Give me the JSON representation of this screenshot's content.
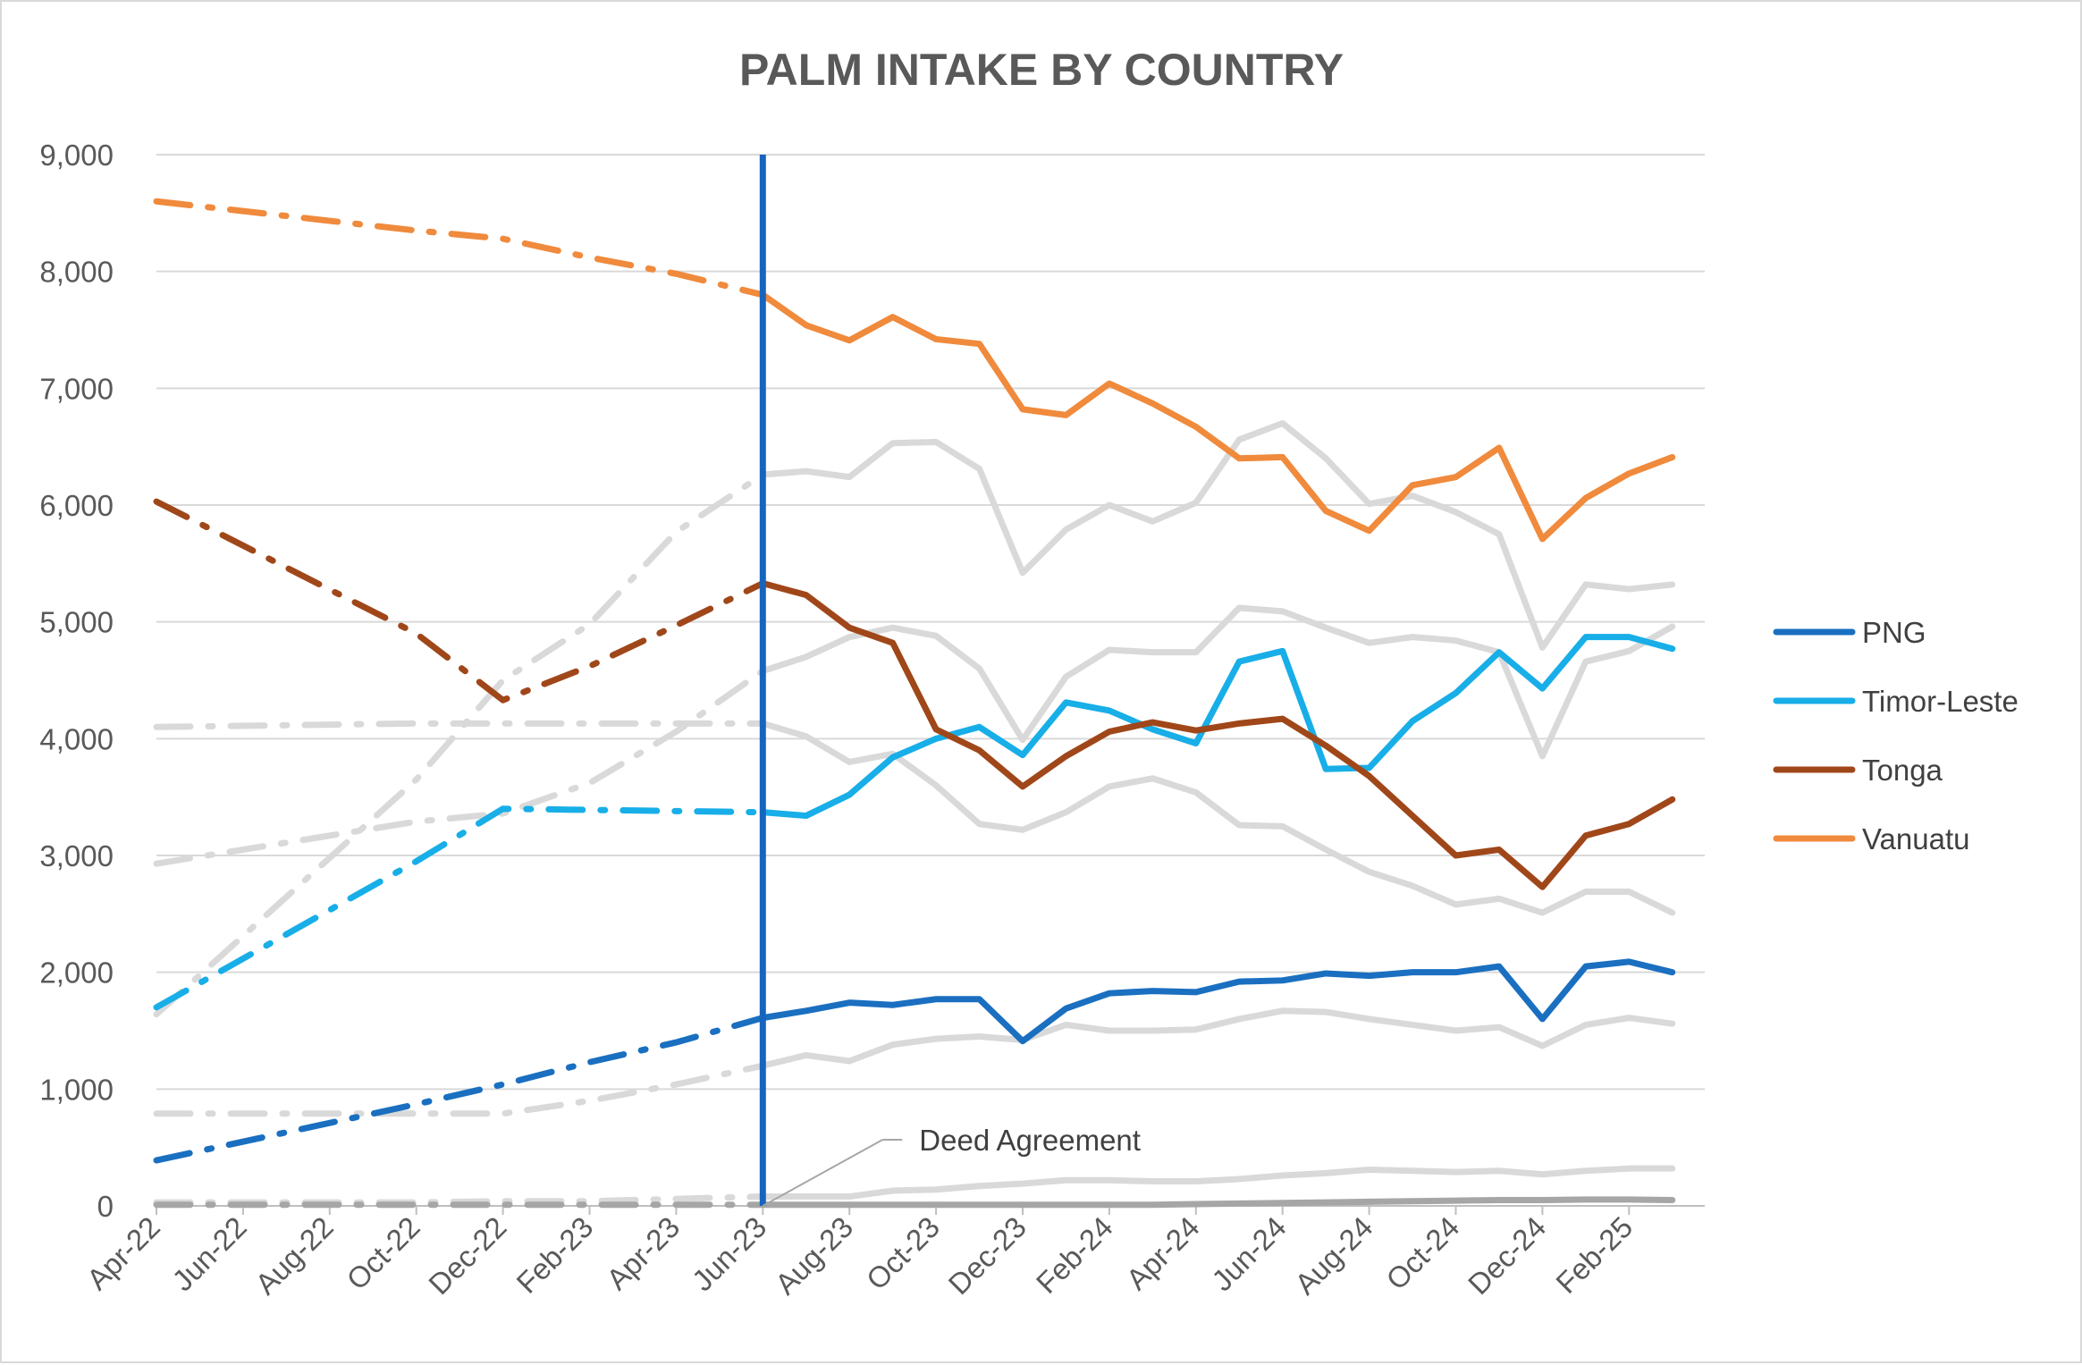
{
  "chart_data": {
    "type": "line",
    "title": "PALM INTAKE BY COUNTRY",
    "xlabel": "",
    "ylabel": "",
    "ylim": [
      0,
      9000
    ],
    "y_ticks": [
      0,
      1000,
      2000,
      3000,
      4000,
      5000,
      6000,
      7000,
      8000,
      9000
    ],
    "y_tick_labels": [
      "0",
      "1,000",
      "2,000",
      "3,000",
      "4,000",
      "5,000",
      "6,000",
      "7,000",
      "8,000",
      "9,000"
    ],
    "x_tick_labels": [
      "Apr-22",
      "Jun-22",
      "Aug-22",
      "Oct-22",
      "Dec-22",
      "Feb-23",
      "Apr-23",
      "Jun-23",
      "Aug-23",
      "Oct-23",
      "Dec-23",
      "Feb-24",
      "Apr-24",
      "Jun-24",
      "Aug-24",
      "Oct-24",
      "Dec-24",
      "Feb-25"
    ],
    "grid": "horizontal",
    "legend_position": "right",
    "colors": {
      "PNG": "#1a6fc0",
      "Timor-Leste": "#18aee8",
      "Tonga": "#a0471a",
      "Vanuatu": "#f08a3c",
      "others": "#d9d9d9",
      "others_dark": "#a6a6a6",
      "marker_line": "#1565c0"
    },
    "marker": {
      "x": "Jun-23",
      "label": "Deed Agreement"
    },
    "highlighted_series": [
      {
        "name": "PNG",
        "pre_agreement": [
          [
            "Apr-22",
            390
          ],
          [
            "Oct-22",
            870
          ],
          [
            "Dec-22",
            1040
          ],
          [
            "Feb-23",
            1230
          ],
          [
            "Apr-23",
            1400
          ],
          [
            "Jun-23",
            1610
          ]
        ],
        "monthly": {
          "start": "Jun-23",
          "values": [
            1610,
            1670,
            1740,
            1720,
            1770,
            1770,
            1410,
            1690,
            1820,
            1840,
            1830,
            1920,
            1930,
            1990,
            1970,
            2000,
            2000,
            2050,
            1600,
            2050,
            2090,
            2000
          ]
        }
      },
      {
        "name": "Timor-Leste",
        "pre_agreement": [
          [
            "Apr-22",
            1700
          ],
          [
            "Oct-22",
            2950
          ],
          [
            "Dec-22",
            3400
          ],
          [
            "Feb-23",
            3390
          ],
          [
            "Apr-23",
            3380
          ],
          [
            "Jun-23",
            3370
          ]
        ],
        "monthly": {
          "start": "Jun-23",
          "values": [
            3370,
            3340,
            3520,
            3840,
            4000,
            4100,
            3860,
            4310,
            4240,
            4080,
            3960,
            4660,
            4750,
            3740,
            3750,
            4150,
            4390,
            4740,
            4430,
            4870,
            4870,
            4770
          ]
        }
      },
      {
        "name": "Tonga",
        "pre_agreement": [
          [
            "Apr-22",
            6030
          ],
          [
            "Oct-22",
            4900
          ],
          [
            "Dec-22",
            4330
          ],
          [
            "Feb-23",
            4620
          ],
          [
            "Apr-23",
            4970
          ],
          [
            "Jun-23",
            5330
          ]
        ],
        "monthly": {
          "start": "Jun-23",
          "values": [
            5330,
            5230,
            4950,
            4820,
            4080,
            3900,
            3590,
            3850,
            4060,
            4140,
            4070,
            4130,
            4170,
            3940,
            3680,
            3340,
            3000,
            3050,
            2730,
            3170,
            3270,
            3480
          ]
        }
      },
      {
        "name": "Vanuatu",
        "pre_agreement": [
          [
            "Apr-22",
            8600
          ],
          [
            "Oct-22",
            8350
          ],
          [
            "Dec-22",
            8280
          ],
          [
            "Feb-23",
            8120
          ],
          [
            "Apr-23",
            7980
          ],
          [
            "Jun-23",
            7800
          ]
        ],
        "monthly": {
          "start": "Jun-23",
          "values": [
            7800,
            7540,
            7410,
            7610,
            7420,
            7380,
            6820,
            6770,
            7040,
            6870,
            6670,
            6400,
            6410,
            5950,
            5780,
            6170,
            6240,
            6490,
            5710,
            6060,
            6270,
            6410
          ]
        }
      }
    ],
    "background_series": [
      {
        "pre_agreement": [
          [
            "Apr-22",
            1640
          ],
          [
            "Oct-22",
            3650
          ],
          [
            "Dec-22",
            4500
          ],
          [
            "Feb-23",
            4980
          ],
          [
            "Apr-23",
            5770
          ],
          [
            "Jun-23",
            6260
          ]
        ],
        "monthly": {
          "start": "Jun-23",
          "values": [
            6260,
            6290,
            6240,
            6530,
            6540,
            6310,
            5420,
            5790,
            6000,
            5860,
            6020,
            6560,
            6700,
            6400,
            6010,
            6080,
            5940,
            5750,
            4780,
            5320,
            5280,
            5320
          ]
        }
      },
      {
        "pre_agreement": [
          [
            "Apr-22",
            2930
          ],
          [
            "Oct-22",
            3290
          ],
          [
            "Dec-22",
            3360
          ],
          [
            "Feb-23",
            3620
          ],
          [
            "Apr-23",
            4060
          ],
          [
            "Jun-23",
            4580
          ]
        ],
        "monthly": {
          "start": "Jun-23",
          "values": [
            4580,
            4700,
            4870,
            4950,
            4880,
            4600,
            3990,
            4530,
            4760,
            4740,
            4740,
            5120,
            5090,
            4950,
            4820,
            4870,
            4840,
            4740,
            3850,
            4660,
            4750,
            4960
          ]
        }
      },
      {
        "pre_agreement": [
          [
            "Apr-22",
            4100
          ],
          [
            "Oct-22",
            4130
          ],
          [
            "Dec-22",
            4130
          ],
          [
            "Feb-23",
            4130
          ],
          [
            "Apr-23",
            4130
          ],
          [
            "Jun-23",
            4130
          ]
        ],
        "monthly": {
          "start": "Jun-23",
          "values": [
            4130,
            4020,
            3800,
            3870,
            3600,
            3270,
            3220,
            3370,
            3590,
            3660,
            3540,
            3260,
            3250,
            3050,
            2860,
            2740,
            2580,
            2630,
            2510,
            2690,
            2690,
            2510
          ]
        }
      },
      {
        "pre_agreement": [
          [
            "Apr-22",
            790
          ],
          [
            "Oct-22",
            790
          ],
          [
            "Dec-22",
            790
          ],
          [
            "Feb-23",
            900
          ],
          [
            "Apr-23",
            1040
          ],
          [
            "Jun-23",
            1200
          ]
        ],
        "monthly": {
          "start": "Jun-23",
          "values": [
            1200,
            1290,
            1240,
            1380,
            1430,
            1450,
            1420,
            1550,
            1500,
            1500,
            1510,
            1600,
            1670,
            1660,
            1600,
            1550,
            1500,
            1530,
            1370,
            1550,
            1610,
            1560
          ]
        }
      },
      {
        "pre_agreement": [
          [
            "Apr-22",
            30
          ],
          [
            "Oct-22",
            30
          ],
          [
            "Dec-22",
            40
          ],
          [
            "Feb-23",
            40
          ],
          [
            "Apr-23",
            60
          ],
          [
            "Jun-23",
            80
          ]
        ],
        "monthly": {
          "start": "Jun-23",
          "values": [
            80,
            80,
            80,
            130,
            140,
            170,
            190,
            220,
            220,
            210,
            210,
            230,
            260,
            280,
            310,
            300,
            290,
            300,
            270,
            300,
            320,
            320
          ]
        }
      },
      {
        "dark": true,
        "pre_agreement": [
          [
            "Apr-22",
            10
          ],
          [
            "Oct-22",
            10
          ],
          [
            "Dec-22",
            10
          ],
          [
            "Feb-23",
            10
          ],
          [
            "Apr-23",
            10
          ],
          [
            "Jun-23",
            10
          ]
        ],
        "monthly": {
          "start": "Jun-23",
          "values": [
            10,
            10,
            10,
            10,
            10,
            10,
            10,
            10,
            10,
            10,
            15,
            20,
            25,
            30,
            35,
            40,
            45,
            50,
            50,
            55,
            55,
            50
          ]
        }
      }
    ]
  }
}
